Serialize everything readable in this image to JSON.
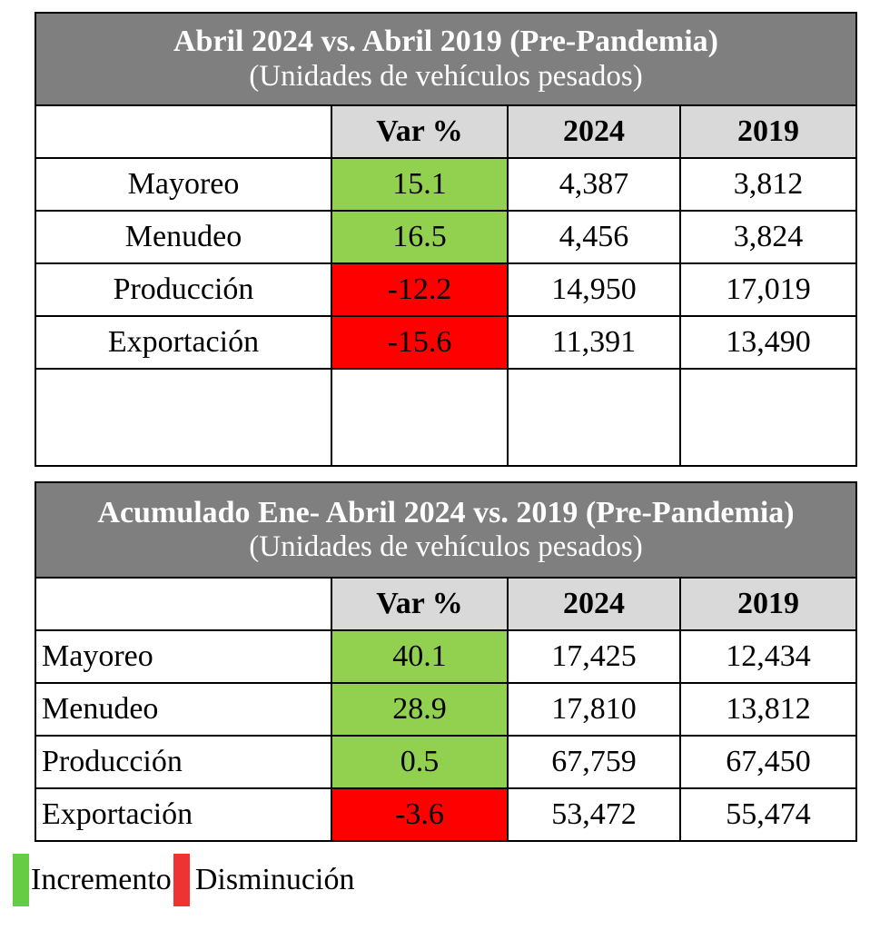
{
  "section1": {
    "title": "Abril 2024 vs. Abril 2019 (Pre-Pandemia)",
    "subtitle": "(Unidades de vehículos pesados)",
    "headers": [
      "Var %",
      "2024",
      "2019"
    ],
    "rows": [
      {
        "label": "Mayoreo",
        "var": "15.1",
        "y2024": "4,387",
        "y2019": "3,812",
        "status": "increase"
      },
      {
        "label": "Menudeo",
        "var": "16.5",
        "y2024": "4,456",
        "y2019": "3,824",
        "status": "increase"
      },
      {
        "label": "Producción",
        "var": "-12.2",
        "y2024": "14,950",
        "y2019": "17,019",
        "status": "decrease"
      },
      {
        "label": "Exportación",
        "var": "-15.6",
        "y2024": "11,391",
        "y2019": "13,490",
        "status": "decrease"
      }
    ]
  },
  "section2": {
    "title": "Acumulado Ene- Abril 2024 vs. 2019 (Pre-Pandemia)",
    "subtitle": "(Unidades de vehículos pesados)",
    "headers": [
      "Var %",
      "2024",
      "2019"
    ],
    "rows": [
      {
        "label": "Mayoreo",
        "var": "40.1",
        "y2024": "17,425",
        "y2019": "12,434",
        "status": "increase"
      },
      {
        "label": "Menudeo",
        "var": "28.9",
        "y2024": "17,810",
        "y2019": "13,812",
        "status": "increase"
      },
      {
        "label": "Producción",
        "var": "0.5",
        "y2024": "67,759",
        "y2019": "67,450",
        "status": "increase"
      },
      {
        "label": "Exportación",
        "var": "-3.6",
        "y2024": "53,472",
        "y2019": "55,474",
        "status": "decrease"
      }
    ]
  },
  "legend": {
    "increase_label": "Incremento",
    "decrease_label": "Disminución",
    "increase_color": "#92d050",
    "decrease_color": "#ff0000",
    "legend_increase_color": "#66cc44",
    "legend_decrease_color": "#ee3333"
  }
}
